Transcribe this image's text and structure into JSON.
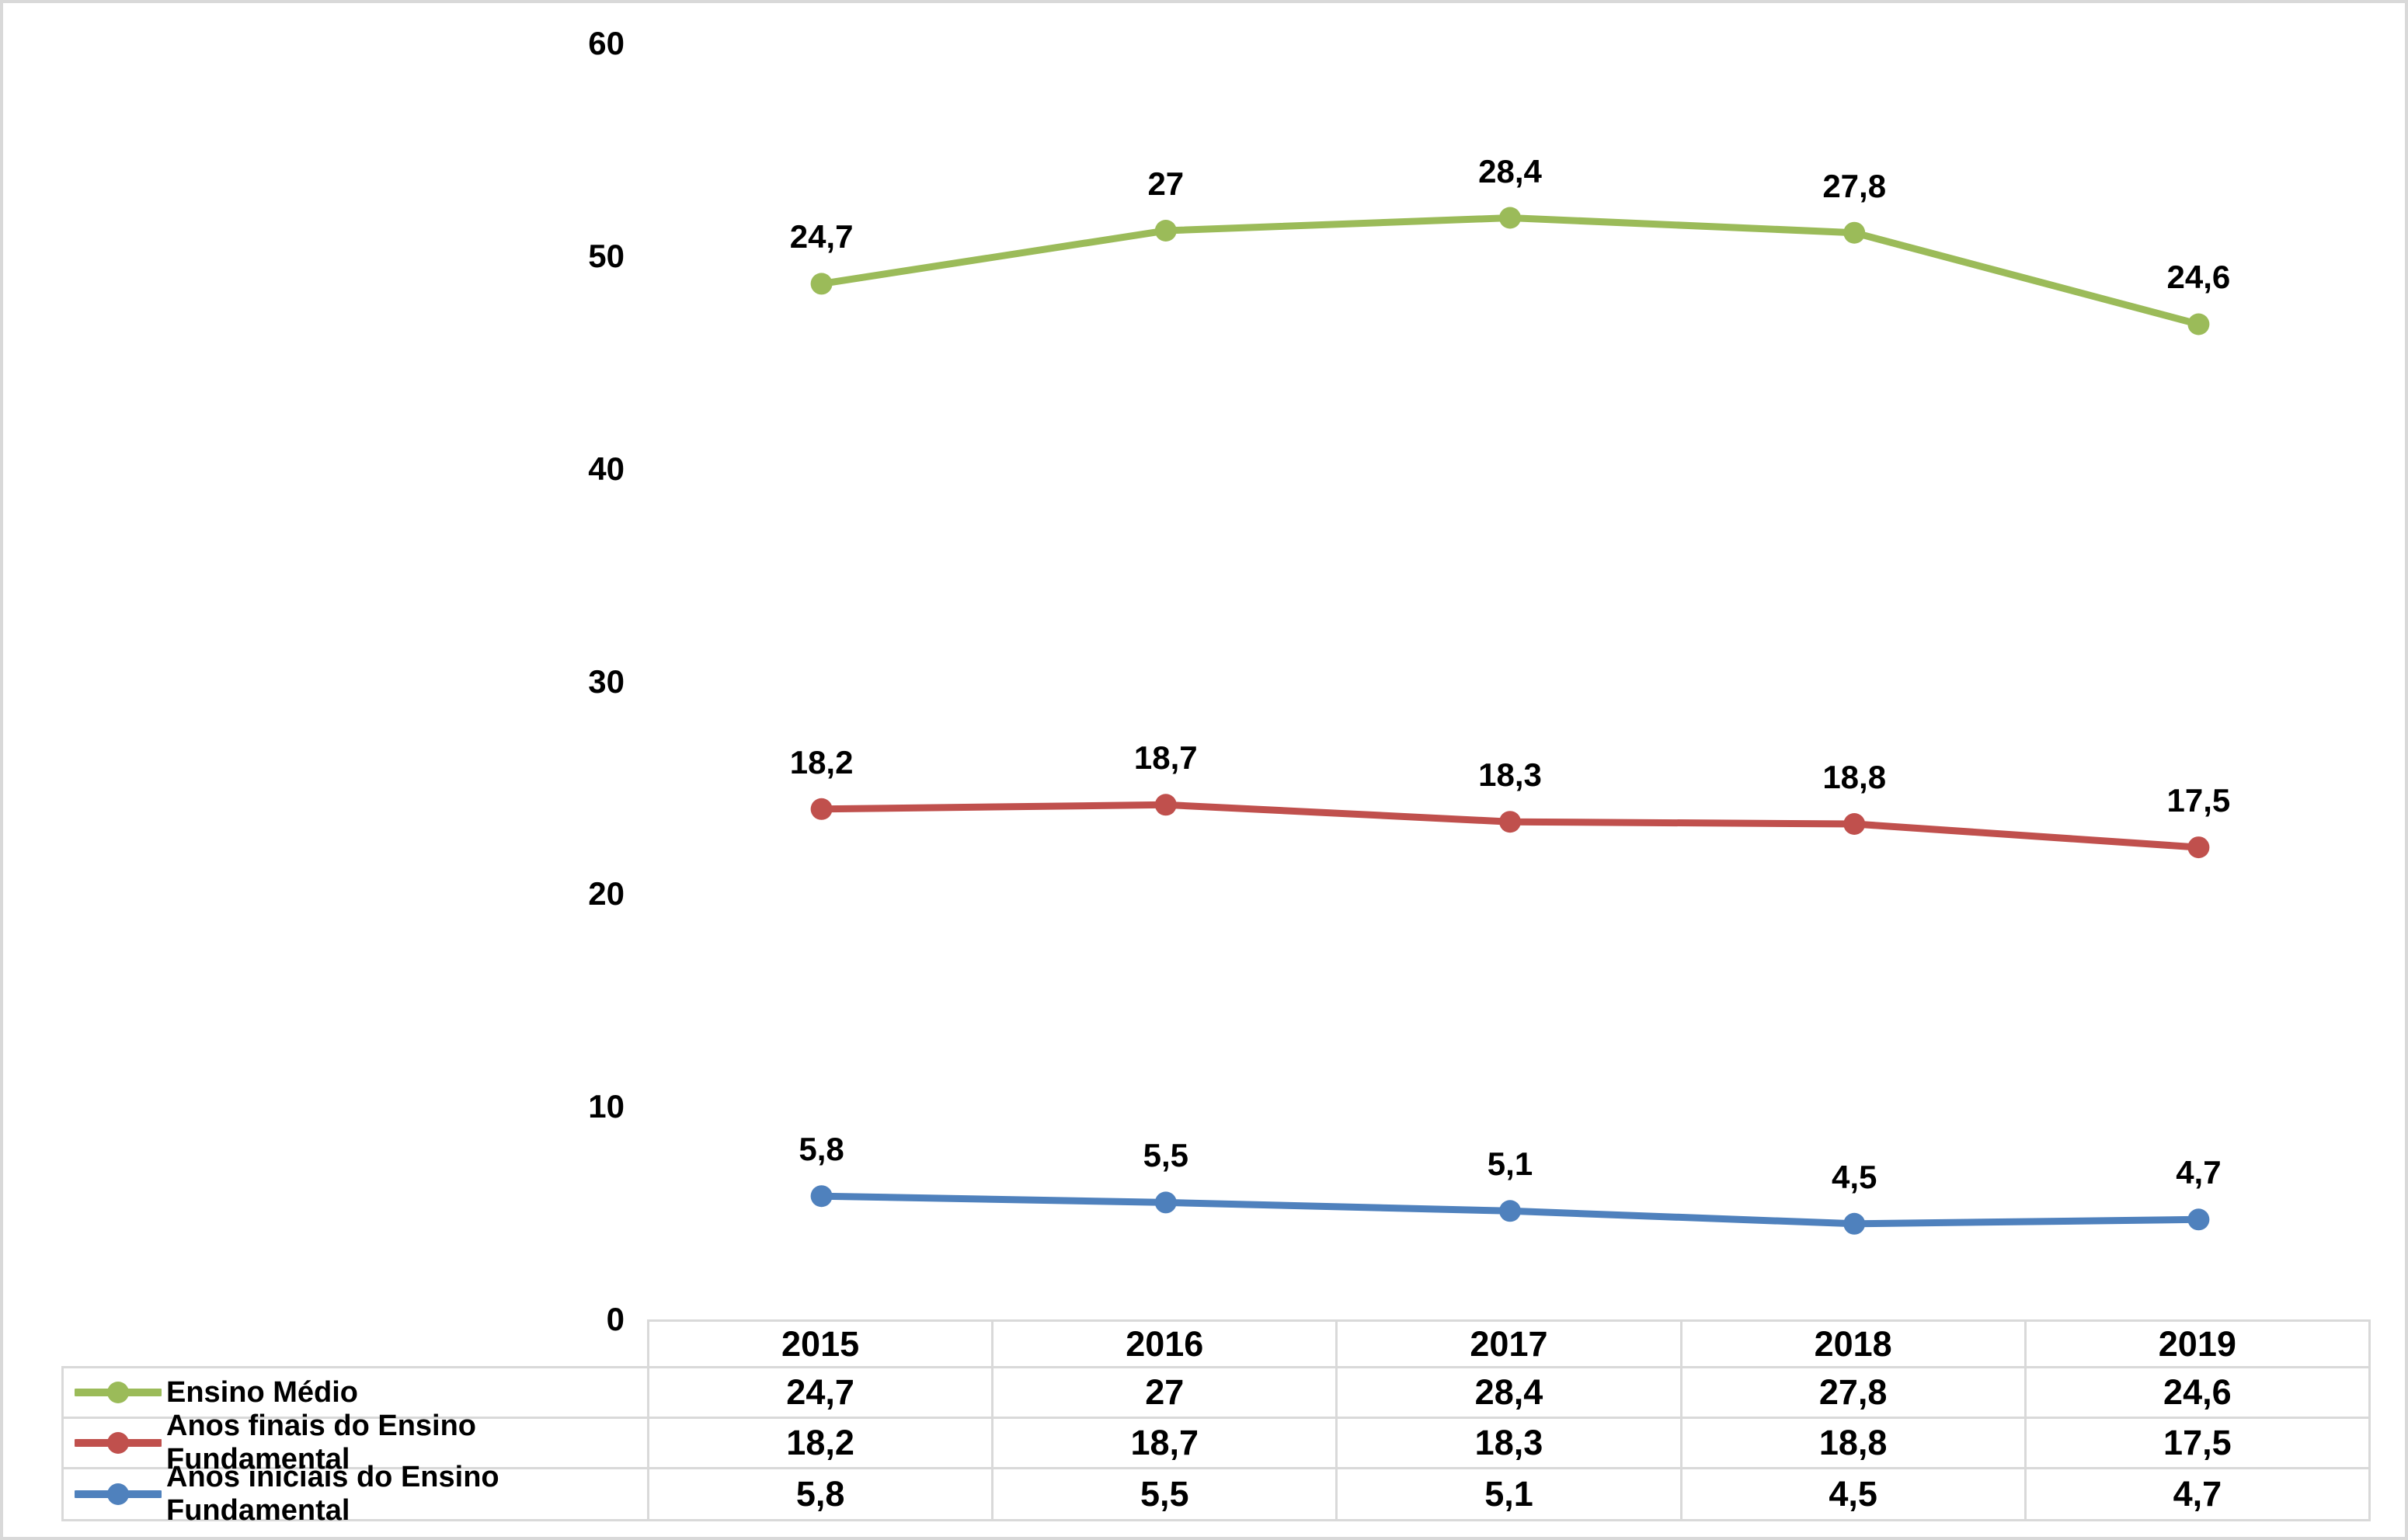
{
  "chart_data": {
    "type": "line",
    "stacked": true,
    "title": "",
    "xlabel": "",
    "ylabel": "",
    "categories": [
      "2015",
      "2016",
      "2017",
      "2018",
      "2019"
    ],
    "series": [
      {
        "name": "Ensino Médio",
        "color": "#9BBB59",
        "values": [
          24.7,
          27,
          28.4,
          27.8,
          24.6
        ],
        "labels": [
          "24,7",
          "27",
          "28,4",
          "27,8",
          "24,6"
        ]
      },
      {
        "name": "Anos finais do Ensino Fundamental",
        "color": "#C0504D",
        "values": [
          18.2,
          18.7,
          18.3,
          18.8,
          17.5
        ],
        "labels": [
          "18,2",
          "18,7",
          "18,3",
          "18,8",
          "17,5"
        ]
      },
      {
        "name": "Anos iniciais do Ensino Fundamental",
        "color": "#4F81BD",
        "values": [
          5.8,
          5.5,
          5.1,
          4.5,
          4.7
        ],
        "labels": [
          "5,8",
          "5,5",
          "5,1",
          "4,5",
          "4,7"
        ]
      }
    ],
    "ylim": [
      0,
      60
    ],
    "y_ticks": [
      0,
      10,
      20,
      30,
      40,
      50,
      60
    ],
    "grid": false,
    "legend_position": "data-table-left-column",
    "data_table_shown": true,
    "marker": "circle",
    "table_border_color": "#D9D9D9",
    "text_color": "#000000",
    "background_color": "#FFFFFF"
  }
}
